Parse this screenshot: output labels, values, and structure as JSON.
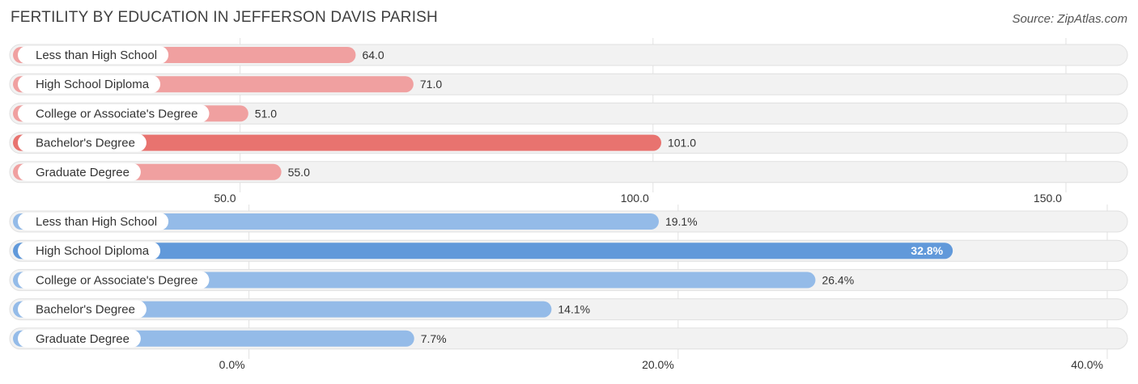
{
  "title": "FERTILITY BY EDUCATION IN JEFFERSON DAVIS PARISH",
  "source": "Source: ZipAtlas.com",
  "colors": {
    "top_bar": "#f0a0a0",
    "top_highlight": "#e8736f",
    "bottom_bar": "#94bbe8",
    "bottom_highlight": "#6199da"
  },
  "chart_data": [
    {
      "type": "bar",
      "orientation": "horizontal",
      "categories": [
        "Less than High School",
        "High School Diploma",
        "College or Associate's Degree",
        "Bachelor's Degree",
        "Graduate Degree"
      ],
      "values": [
        64.0,
        71.0,
        51.0,
        101.0,
        55.0
      ],
      "value_labels": [
        "64.0",
        "71.0",
        "51.0",
        "101.0",
        "55.0"
      ],
      "highlight_index": 3,
      "xlim": [
        22.5,
        155.0
      ],
      "ticks": [
        50.0,
        100.0,
        150.0
      ],
      "tick_labels": [
        "50.0",
        "100.0",
        "150.0"
      ],
      "grid": true
    },
    {
      "type": "bar",
      "orientation": "horizontal",
      "categories": [
        "Less than High School",
        "High School Diploma",
        "College or Associate's Degree",
        "Bachelor's Degree",
        "Graduate Degree"
      ],
      "values": [
        19.1,
        32.8,
        26.4,
        14.1,
        7.7
      ],
      "value_labels": [
        "19.1%",
        "32.8%",
        "26.4%",
        "14.1%",
        "7.7%"
      ],
      "highlight_index": 1,
      "xlim": [
        -11.0,
        40.0
      ],
      "ticks": [
        0.0,
        20.0,
        40.0
      ],
      "tick_labels": [
        "0.0%",
        "20.0%",
        "40.0%"
      ],
      "grid": true
    }
  ]
}
